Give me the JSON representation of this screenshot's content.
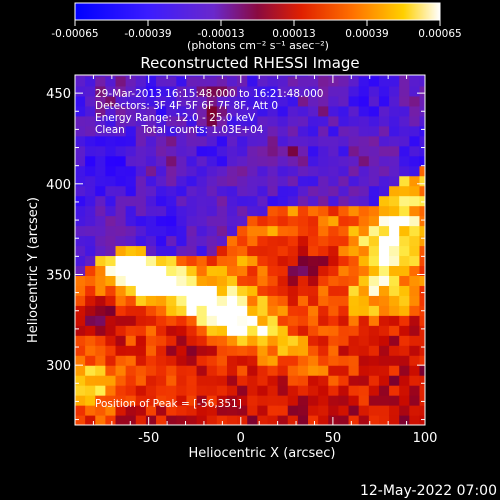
{
  "colorbar": {
    "tick_labels": [
      "-0.00065",
      "-0.00039",
      "-0.00013",
      "0.00013",
      "0.00039",
      "0.00065"
    ],
    "units_label": "(photons cm⁻² s⁻¹ asec⁻²)",
    "range": [
      -0.00065,
      0.00065
    ]
  },
  "chart_data": {
    "type": "heatmap",
    "title": "Reconstructed RHESSI Image",
    "xlabel": "Heliocentric X (arcsec)",
    "ylabel": "Heliocentric Y (arcsec)",
    "xlim": [
      -90,
      100
    ],
    "ylim": [
      267,
      460
    ],
    "x_ticks": [
      -50,
      0,
      50,
      100
    ],
    "y_ticks": [
      300,
      350,
      400,
      450
    ],
    "x_tick_labels": [
      "-50",
      "0",
      "50",
      "100"
    ],
    "y_tick_labels": [
      "300",
      "350",
      "400",
      "450"
    ],
    "colormap": "hessi-fire (blue-purple-red-orange-yellow-white)",
    "features": [
      {
        "name": "bright arc",
        "x_range": [
          -85,
          95
        ],
        "y_range": [
          290,
          395
        ],
        "level": "high"
      },
      {
        "name": "peak region",
        "x": -56,
        "y": 351,
        "level": "max"
      }
    ],
    "info_lines": [
      "29-Mar-2013 16:15:48.000 to 16:21:48.000",
      "Detectors: 3F 4F 5F 6F 7F 8F, Att 0",
      "Energy Range: 12.0 - 25.0 keV",
      "Clean     Total counts: 1.03E+04"
    ],
    "peak_text": "Position of Peak = [-56,351]"
  },
  "footer": {
    "timestamp": "12-May-2022 07:00"
  }
}
